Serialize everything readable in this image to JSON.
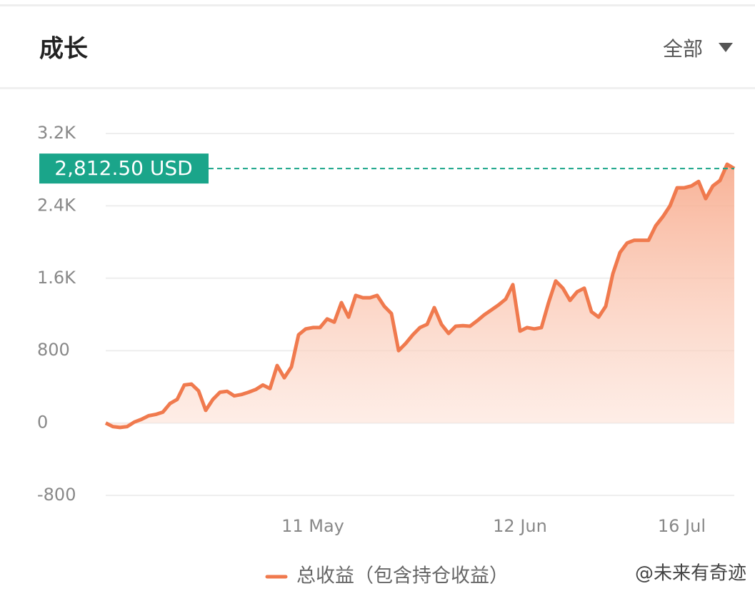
{
  "header": {
    "title": "成长",
    "filter": "全部"
  },
  "watermark": "@未来有奇迹",
  "chart_data": {
    "type": "area",
    "x": [
      0,
      1,
      2,
      3,
      4,
      5,
      6,
      7,
      8,
      9,
      10,
      11,
      12,
      13,
      14,
      15,
      16,
      17,
      18,
      19,
      20,
      21,
      22,
      23,
      24,
      25,
      26,
      27,
      28,
      29,
      30,
      31,
      32,
      33,
      34,
      35,
      36,
      37,
      38,
      39,
      40,
      41,
      42,
      43,
      44,
      45,
      46,
      47,
      48,
      49,
      50,
      51,
      52,
      53,
      54,
      55,
      56,
      57,
      58,
      59,
      60,
      61,
      62,
      63,
      64,
      65,
      66,
      67,
      68,
      69,
      70,
      71,
      72,
      73,
      74,
      75,
      76,
      77,
      78,
      79,
      80,
      81,
      82,
      83,
      84,
      85,
      86,
      87,
      88
    ],
    "series": [
      {
        "name": "总收益（包含持仓收益）",
        "color": "#f07a4e",
        "values": [
          0,
          -40,
          -50,
          -40,
          10,
          40,
          80,
          95,
          120,
          215,
          260,
          420,
          430,
          355,
          140,
          260,
          340,
          350,
          300,
          315,
          340,
          370,
          420,
          380,
          635,
          500,
          620,
          975,
          1040,
          1055,
          1055,
          1150,
          1115,
          1330,
          1170,
          1410,
          1385,
          1385,
          1410,
          1290,
          1210,
          800,
          880,
          975,
          1055,
          1090,
          1275,
          1090,
          990,
          1070,
          1075,
          1070,
          1130,
          1195,
          1250,
          1305,
          1370,
          1530,
          1015,
          1055,
          1040,
          1055,
          1330,
          1570,
          1490,
          1355,
          1450,
          1490,
          1230,
          1170,
          1290,
          1650,
          1885,
          1990,
          2020,
          2020,
          2020,
          2180,
          2280,
          2400,
          2600,
          2600,
          2620,
          2670,
          2480,
          2620,
          2680,
          2860,
          2812.5
        ]
      }
    ],
    "xlim": [
      0,
      88
    ],
    "xticks": [
      {
        "value": 29,
        "label": "11 May"
      },
      {
        "value": 58,
        "label": "12 Jun"
      },
      {
        "value": 84,
        "label": "16 Jul"
      }
    ],
    "ylim": [
      -800,
      3200
    ],
    "yticks": [
      -800,
      0,
      800,
      {
        "value": 1600,
        "label": "1.6K"
      },
      {
        "value": 2400,
        "label": "2.4K"
      },
      {
        "value": 3200,
        "label": "3.2K"
      }
    ],
    "grid": true,
    "reference_line": {
      "value": 2812.5,
      "label": "2,812.50 USD",
      "color": "#1aa58a"
    }
  }
}
